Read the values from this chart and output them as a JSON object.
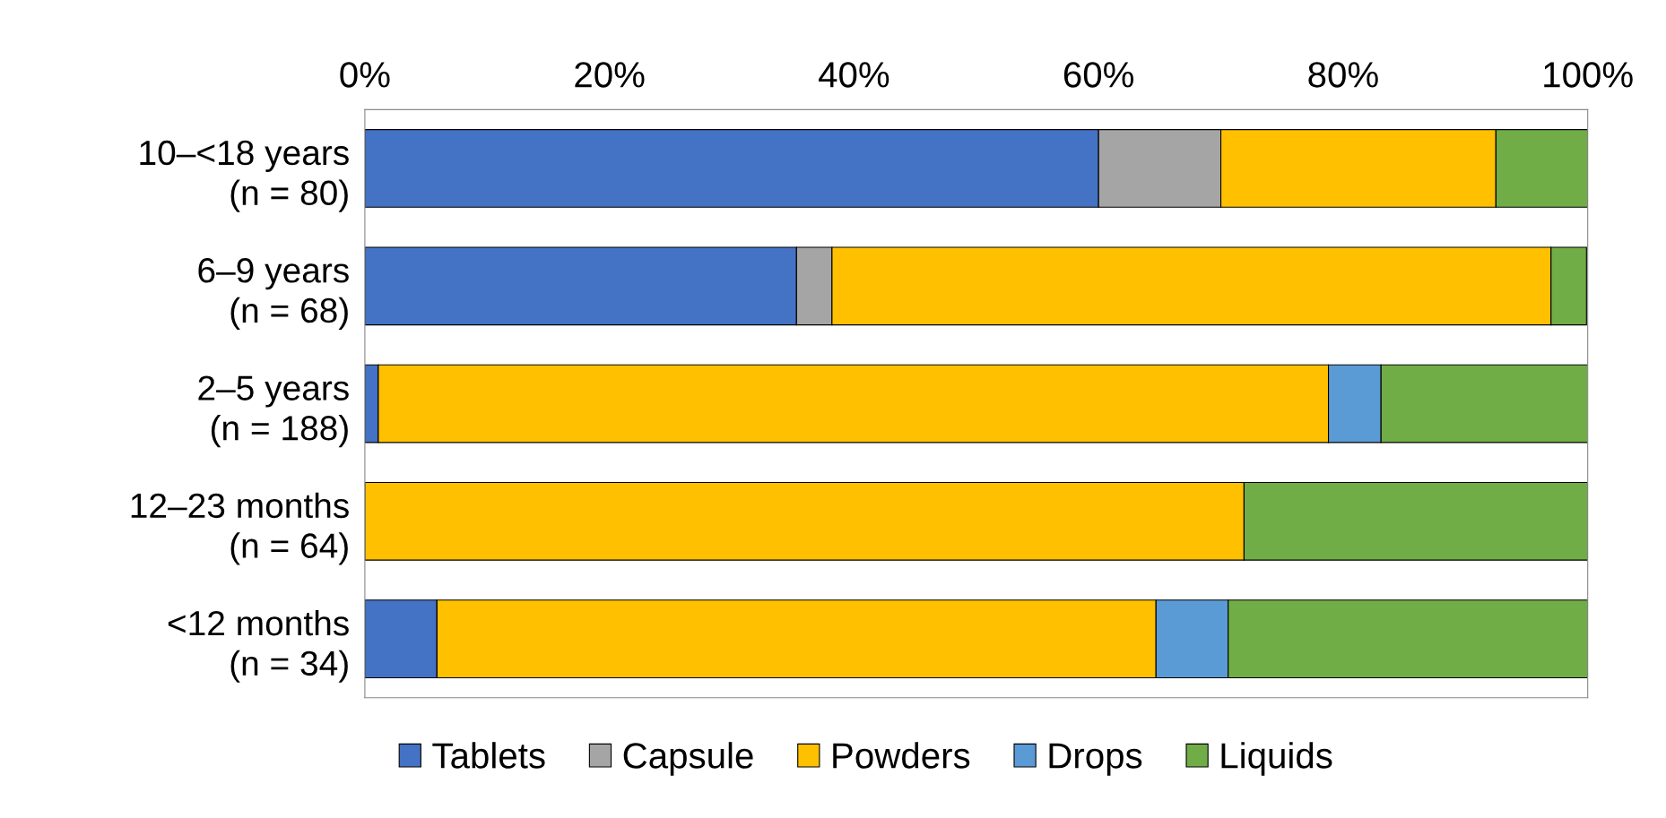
{
  "chart_data": {
    "type": "bar",
    "orientation": "horizontal",
    "stacked": true,
    "categories": [
      "10–<18 years\n(n = 80)",
      "6–9 years\n(n = 68)",
      "2–5 years\n(n = 188)",
      "12–23 months\n(n = 64)",
      "<12 months\n(n = 34)"
    ],
    "series": [
      {
        "name": "Tablets",
        "color": "#4472c4",
        "values": [
          60,
          35.3,
          1.1,
          0,
          5.9
        ]
      },
      {
        "name": "Capsule",
        "color": "#a5a5a5",
        "values": [
          10,
          2.9,
          0,
          0,
          0
        ]
      },
      {
        "name": "Powders",
        "color": "#ffc000",
        "values": [
          22.5,
          58.8,
          77.7,
          71.9,
          58.8
        ]
      },
      {
        "name": "Drops",
        "color": "#5b9bd5",
        "values": [
          0,
          0,
          4.3,
          0,
          5.9
        ]
      },
      {
        "name": "Liquids",
        "color": "#70ad47",
        "values": [
          7.5,
          2.9,
          17.0,
          28.1,
          29.4
        ]
      }
    ],
    "xlim": [
      0,
      100
    ],
    "xticks": [
      {
        "value": 0,
        "label": "0%"
      },
      {
        "value": 20,
        "label": "20%"
      },
      {
        "value": 40,
        "label": "40%"
      },
      {
        "value": 60,
        "label": "60%"
      },
      {
        "value": 80,
        "label": "80%"
      },
      {
        "value": 100,
        "label": "100%"
      }
    ],
    "grid": false,
    "legend": "bottom"
  }
}
